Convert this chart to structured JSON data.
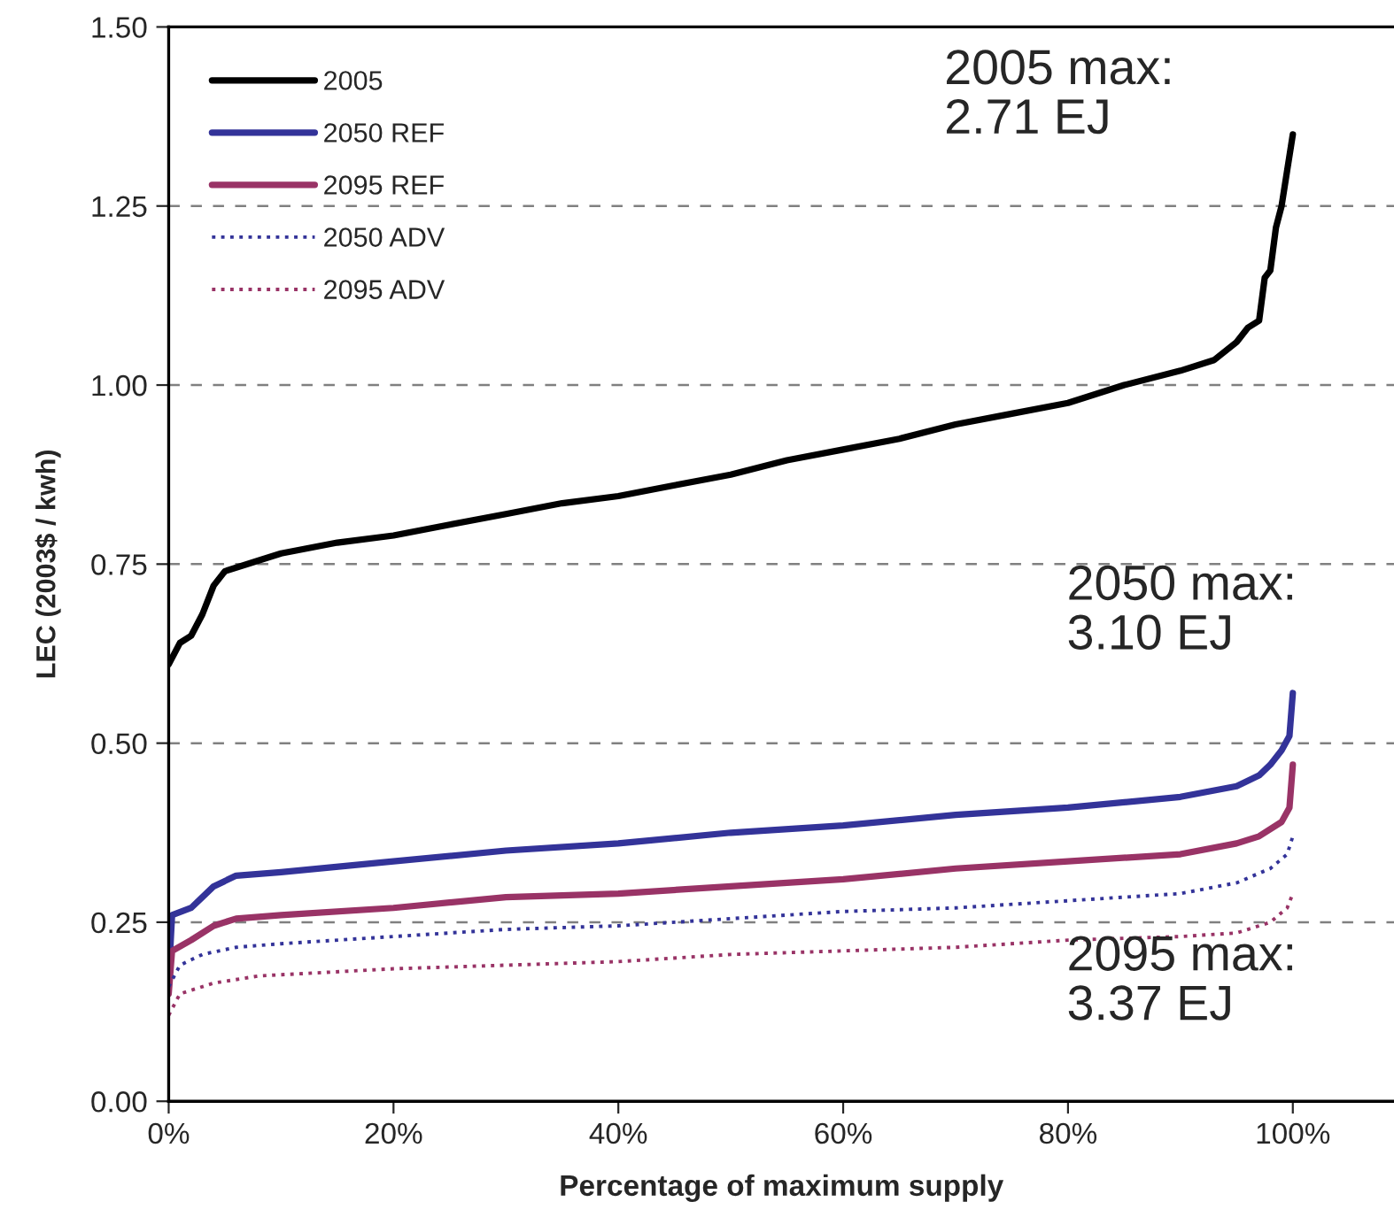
{
  "chart_data": {
    "type": "line",
    "xlabel": "Percentage of maximum supply",
    "ylabel": "LEC (2003$ / kwh)",
    "xlim": [
      0,
      109
    ],
    "xticks": [
      {
        "value": 0,
        "label": "0%"
      },
      {
        "value": 20,
        "label": "20%"
      },
      {
        "value": 40,
        "label": "40%"
      },
      {
        "value": 60,
        "label": "60%"
      },
      {
        "value": 80,
        "label": "80%"
      },
      {
        "value": 100,
        "label": "100%"
      }
    ],
    "ylim": [
      0,
      1.5
    ],
    "yticks": [
      {
        "value": 0,
        "label": "0.00"
      },
      {
        "value": 0.25,
        "label": "0.25"
      },
      {
        "value": 0.5,
        "label": "0.50"
      },
      {
        "value": 0.75,
        "label": "0.75"
      },
      {
        "value": 1.0,
        "label": "1.00"
      },
      {
        "value": 1.25,
        "label": "1.25"
      },
      {
        "value": 1.5,
        "label": "1.50"
      }
    ],
    "grid": "y",
    "legend": "top left",
    "marker": "none",
    "annotations": [
      "2005 max:\n2.71 EJ",
      "2050 max:\n3.10 EJ",
      "2095 max:\n3.37 EJ"
    ],
    "series": [
      {
        "name": "2005",
        "color": "#000000",
        "line_style": "solid",
        "x": [
          0,
          1,
          2,
          3,
          4,
          5,
          8,
          10,
          15,
          20,
          25,
          30,
          35,
          40,
          45,
          50,
          55,
          60,
          65,
          70,
          75,
          80,
          85,
          90,
          93,
          95,
          96,
          97,
          97.5,
          98,
          98.5,
          99,
          99.5,
          100
        ],
        "values": [
          0.61,
          0.64,
          0.65,
          0.68,
          0.72,
          0.74,
          0.755,
          0.765,
          0.78,
          0.79,
          0.805,
          0.82,
          0.835,
          0.845,
          0.86,
          0.875,
          0.895,
          0.91,
          0.925,
          0.945,
          0.96,
          0.975,
          1.0,
          1.02,
          1.035,
          1.06,
          1.08,
          1.09,
          1.15,
          1.16,
          1.22,
          1.25,
          1.3,
          1.35
        ]
      },
      {
        "name": "2050 REF",
        "color": "#333399",
        "line_style": "solid",
        "x": [
          0,
          0.3,
          2,
          4,
          6,
          10,
          20,
          30,
          40,
          50,
          60,
          70,
          80,
          90,
          95,
          97,
          98,
          99,
          99.7,
          100
        ],
        "values": [
          0.17,
          0.26,
          0.27,
          0.3,
          0.315,
          0.32,
          0.335,
          0.35,
          0.36,
          0.375,
          0.385,
          0.4,
          0.41,
          0.425,
          0.44,
          0.455,
          0.47,
          0.49,
          0.51,
          0.57
        ]
      },
      {
        "name": "2095 REF",
        "color": "#993366",
        "line_style": "solid",
        "x": [
          0,
          0.3,
          2,
          4,
          6,
          10,
          20,
          30,
          40,
          50,
          60,
          70,
          80,
          90,
          95,
          97,
          99,
          99.7,
          100
        ],
        "values": [
          0.15,
          0.21,
          0.225,
          0.245,
          0.255,
          0.26,
          0.27,
          0.285,
          0.29,
          0.3,
          0.31,
          0.325,
          0.335,
          0.345,
          0.36,
          0.37,
          0.39,
          0.41,
          0.47
        ]
      },
      {
        "name": "2050 ADV",
        "color": "#333399",
        "line_style": "dotted",
        "x": [
          0,
          1,
          3,
          6,
          10,
          20,
          30,
          40,
          50,
          60,
          70,
          80,
          90,
          95,
          98,
          99.5,
          100
        ],
        "values": [
          0.16,
          0.19,
          0.205,
          0.215,
          0.22,
          0.23,
          0.24,
          0.245,
          0.255,
          0.265,
          0.27,
          0.28,
          0.29,
          0.305,
          0.325,
          0.345,
          0.37
        ]
      },
      {
        "name": "2095 ADV",
        "color": "#993366",
        "line_style": "dotted",
        "x": [
          0,
          1,
          4,
          8,
          20,
          30,
          40,
          50,
          60,
          70,
          80,
          90,
          95,
          98,
          99.5,
          100
        ],
        "values": [
          0.12,
          0.15,
          0.165,
          0.175,
          0.185,
          0.19,
          0.195,
          0.205,
          0.21,
          0.215,
          0.225,
          0.23,
          0.235,
          0.25,
          0.27,
          0.29
        ]
      }
    ]
  }
}
